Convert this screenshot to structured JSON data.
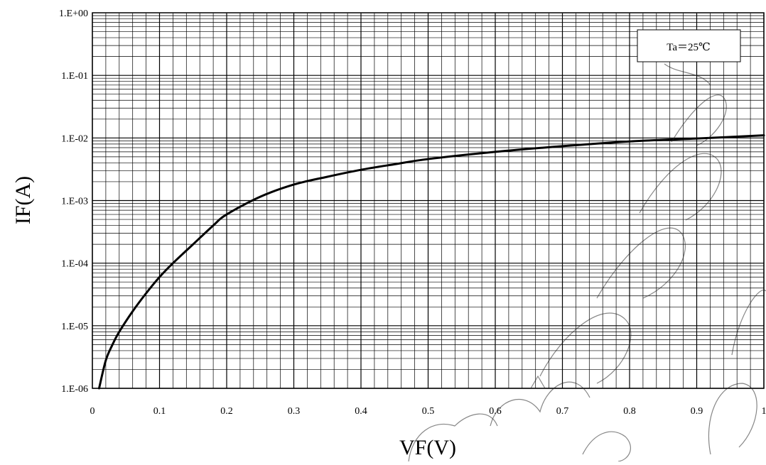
{
  "chart_data": {
    "type": "line",
    "xlabel": "VF(V)",
    "ylabel": "IF(A)",
    "xlim": [
      0,
      1
    ],
    "ylim": [
      1e-06,
      1
    ],
    "y_scale": "log",
    "grid": true,
    "x_tick_labels": [
      "0",
      "0.1",
      "0.2",
      "0.3",
      "0.4",
      "0.5",
      "0.6",
      "0.7",
      "0.8",
      "0.9",
      "1"
    ],
    "y_tick_labels": [
      "1.E+00",
      "1.E-01",
      "1.E-02",
      "1.E-03",
      "1.E-04",
      "1.E-05",
      "1.E-06"
    ],
    "annotation": "Ta＝25℃",
    "series": [
      {
        "color": "#000000",
        "x": [
          0.01,
          0.02,
          0.03,
          0.04,
          0.06,
          0.08,
          0.1,
          0.12,
          0.15,
          0.18,
          0.2,
          0.25,
          0.3,
          0.35,
          0.4,
          0.45,
          0.5,
          0.6,
          0.7,
          0.8,
          0.9,
          1.0
        ],
        "y": [
          1e-06,
          2.8e-06,
          5e-06,
          8e-06,
          1.7e-05,
          3.3e-05,
          6e-05,
          0.0001,
          0.0002,
          0.0004,
          0.0006,
          0.00115,
          0.0018,
          0.0024,
          0.0031,
          0.0038,
          0.0046,
          0.006,
          0.0074,
          0.0088,
          0.0098,
          0.011
        ]
      }
    ]
  },
  "watermark": "mericlasla"
}
